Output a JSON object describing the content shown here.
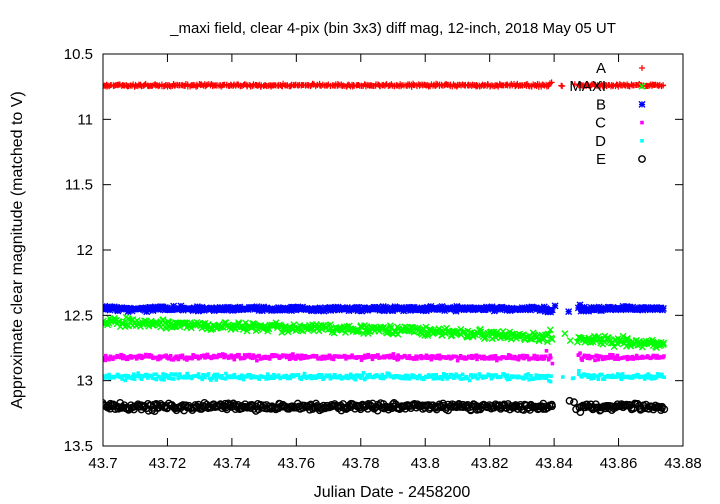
{
  "chart_data": {
    "type": "scatter",
    "title": "_maxi field, clear 4-pix (bin 3x3) diff mag, 12-inch, 2018 May 05 UT",
    "xlabel": "Julian Date - 2458200",
    "ylabel": "Approximate clear magnitude (matched to V)",
    "xlim": [
      43.7,
      43.88
    ],
    "ylim": [
      10.5,
      13.5
    ],
    "y_inverted": true,
    "grid": false,
    "legend_position": "top-right",
    "x_ticks": [
      "43.7",
      "43.72",
      "43.74",
      "43.76",
      "43.78",
      "43.8",
      "43.82",
      "43.84",
      "43.86",
      "43.88"
    ],
    "y_ticks": [
      "10.5",
      "11",
      "11.5",
      "12",
      "12.5",
      "13",
      "13.5"
    ],
    "x_range_observed": [
      43.7,
      43.874
    ],
    "gap": [
      43.8395,
      43.8475
    ],
    "series": [
      {
        "name": "A",
        "color": "#ff0000",
        "marker": "plus",
        "mean": 10.74,
        "scatter": 0.015
      },
      {
        "name": "MAXI",
        "color": "#00ff00",
        "marker": "cross",
        "mean": 12.62,
        "scatter": 0.05,
        "trend": [
          [
            43.7,
            12.55
          ],
          [
            43.8,
            12.62
          ],
          [
            43.874,
            12.72
          ]
        ]
      },
      {
        "name": "B",
        "color": "#0000ff",
        "marker": "star",
        "mean": 12.45,
        "scatter": 0.025
      },
      {
        "name": "C",
        "color": "#ff00ff",
        "marker": "square",
        "mean": 12.82,
        "scatter": 0.03
      },
      {
        "name": "D",
        "color": "#00ffff",
        "marker": "square",
        "mean": 12.97,
        "scatter": 0.035
      },
      {
        "name": "E",
        "color": "#000000",
        "marker": "circle",
        "mean": 13.2,
        "scatter": 0.04
      }
    ]
  }
}
